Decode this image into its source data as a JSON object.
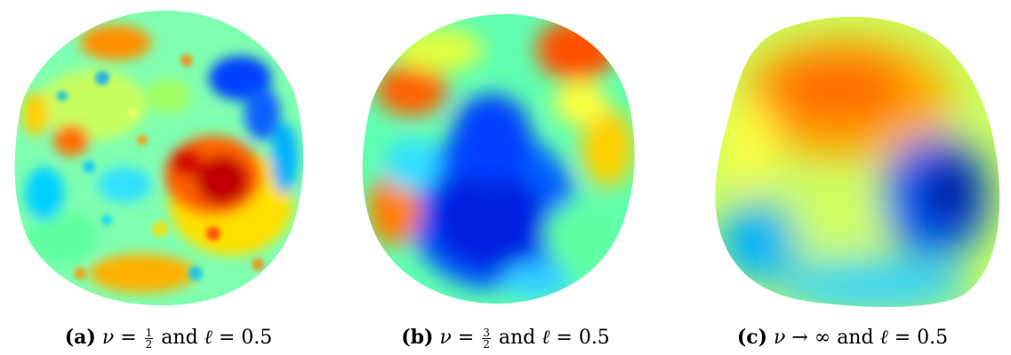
{
  "panels": [
    {
      "tag": "(a)",
      "greek": "ν",
      "relation": "=",
      "frac_num": "1",
      "frac_den": "2",
      "conj": "and",
      "ell": "ℓ",
      "ell_value": "= 0.5"
    },
    {
      "tag": "(b)",
      "greek": "ν",
      "relation": "=",
      "frac_num": "3",
      "frac_den": "2",
      "conj": "and",
      "ell": "ℓ",
      "ell_value": "= 0.5"
    },
    {
      "tag": "(c)",
      "greek": "ν",
      "relation": "→ ∞",
      "conj": "and",
      "ell": "ℓ",
      "ell_value": "= 0.5"
    }
  ],
  "colormap": [
    "#00008f",
    "#0050ff",
    "#00c0ff",
    "#80ff80",
    "#ffe000",
    "#ff6000",
    "#a00000"
  ]
}
